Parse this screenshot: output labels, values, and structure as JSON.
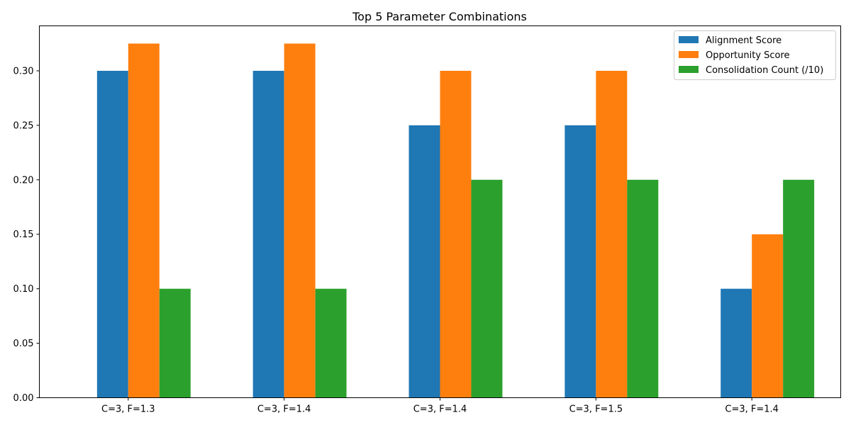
{
  "chart_data": {
    "type": "bar",
    "title": "Top 5 Parameter Combinations",
    "xlabel": "",
    "ylabel": "",
    "categories": [
      "C=3, F=1.3",
      "C=3, F=1.4",
      "C=3, F=1.4",
      "C=3, F=1.5",
      "C=3, F=1.4"
    ],
    "series": [
      {
        "name": "Alignment Score",
        "color": "#1f77b4",
        "values": [
          0.3,
          0.3,
          0.25,
          0.25,
          0.1
        ]
      },
      {
        "name": "Opportunity Score",
        "color": "#ff7f0e",
        "values": [
          0.325,
          0.325,
          0.3,
          0.3,
          0.15
        ]
      },
      {
        "name": "Consolidation Count (/10)",
        "color": "#2ca02c",
        "values": [
          0.1,
          0.1,
          0.2,
          0.2,
          0.2
        ]
      }
    ],
    "ylim": [
      0,
      0.34125
    ],
    "yticks": [
      "0.00",
      "0.05",
      "0.10",
      "0.15",
      "0.20",
      "0.25",
      "0.30"
    ],
    "legend_position": "top-right",
    "grid": false
  }
}
